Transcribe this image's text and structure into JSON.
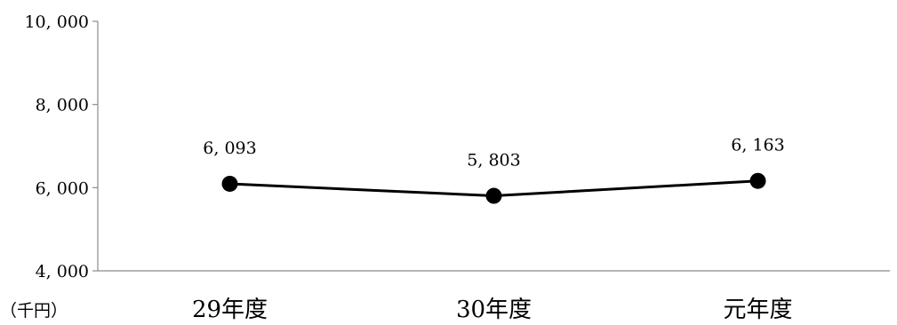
{
  "chart_data": {
    "type": "line",
    "categories": [
      "29年度",
      "30年度",
      "元年度"
    ],
    "values": [
      6093,
      5803,
      6163
    ],
    "data_labels": [
      "6, 093",
      "5, 803",
      "6, 163"
    ],
    "ylim": [
      4000,
      10000
    ],
    "yticks": [
      4000,
      6000,
      8000,
      10000
    ],
    "ytick_labels": [
      "4, 000",
      "6, 000",
      "8, 000",
      "10, 000"
    ],
    "unit_label": "（千円）",
    "title": "",
    "xlabel": "",
    "ylabel": "",
    "grid": false,
    "legend": "none",
    "line_color": "#000000",
    "marker": "filled-circle"
  }
}
